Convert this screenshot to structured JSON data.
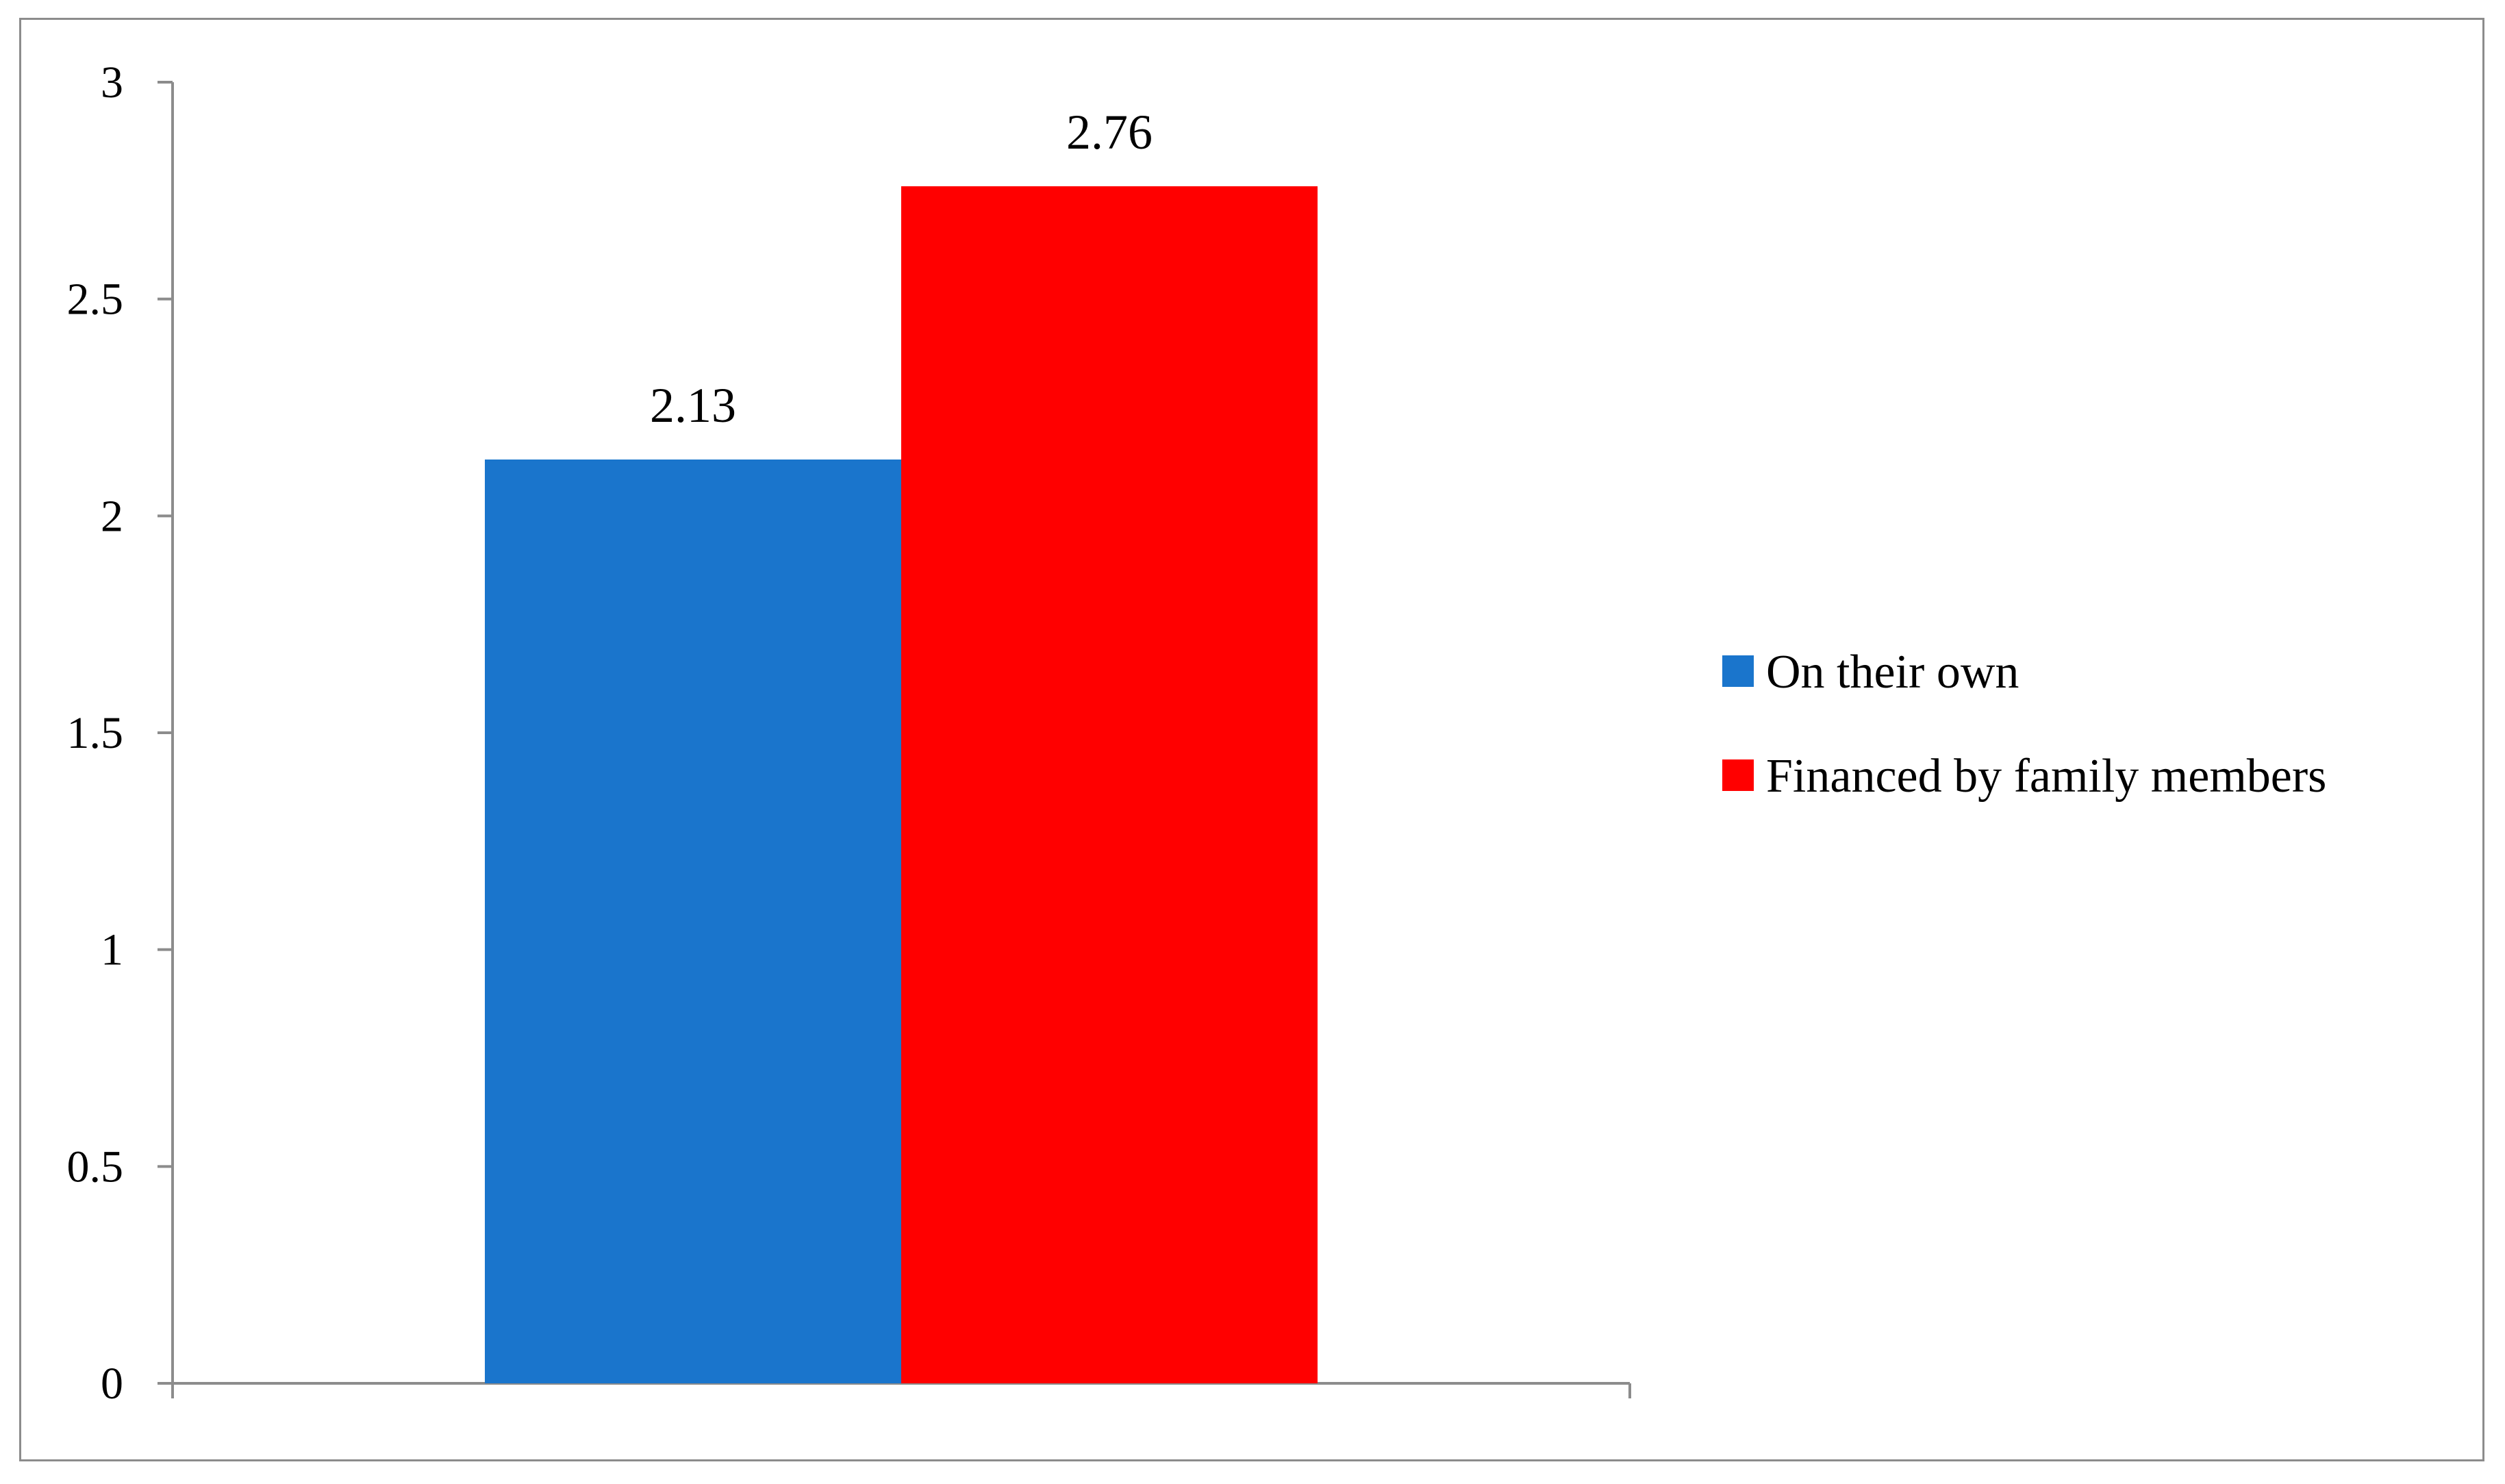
{
  "chart_data": {
    "type": "bar",
    "title": "",
    "xlabel": "",
    "ylabel": "",
    "categories": [
      ""
    ],
    "series": [
      {
        "name": "On their own",
        "values": [
          2.13
        ],
        "color": "#1a75cc"
      },
      {
        "name": "Financed by family members",
        "values": [
          2.76
        ],
        "color": "#ff0000"
      }
    ],
    "ylim": [
      0,
      3
    ],
    "yticks": [
      0,
      0.5,
      1,
      1.5,
      2,
      2.5,
      3
    ],
    "ytick_labels": [
      "0",
      "0.5",
      "1",
      "1.5",
      "2",
      "2.5",
      "3"
    ],
    "data_labels": [
      "2.13",
      "2.76"
    ],
    "grid": false,
    "legend_position": "right",
    "axis_color": "#8c8c8c"
  }
}
